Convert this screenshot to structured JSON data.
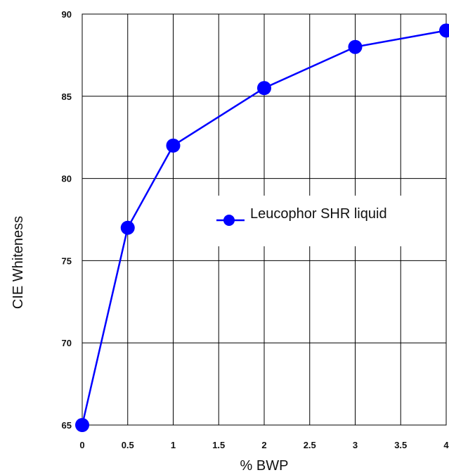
{
  "chart_data": {
    "type": "line",
    "x": [
      0,
      0.5,
      1,
      2,
      3,
      4
    ],
    "series": [
      {
        "name": "Leucophor SHR liquid",
        "values": [
          65,
          77,
          82,
          85.5,
          88,
          89
        ],
        "color": "#0000ff",
        "marker": "circle"
      }
    ],
    "xlabel": "% BWP",
    "ylabel": "CIE Whiteness",
    "xlim": [
      0,
      4
    ],
    "ylim": [
      65,
      90
    ],
    "xticks": [
      0,
      0.5,
      1,
      1.5,
      2,
      2.5,
      3,
      3.5,
      4
    ],
    "xtick_labels": [
      "0",
      "0.5",
      "1",
      "1.5",
      "2",
      "2.5",
      "3",
      "3.5",
      "4"
    ],
    "yticks": [
      65,
      70,
      75,
      80,
      85,
      90
    ],
    "ytick_labels": [
      "65",
      "70",
      "75",
      "80",
      "85",
      "90"
    ],
    "grid": true,
    "legend_position": "center-right"
  }
}
